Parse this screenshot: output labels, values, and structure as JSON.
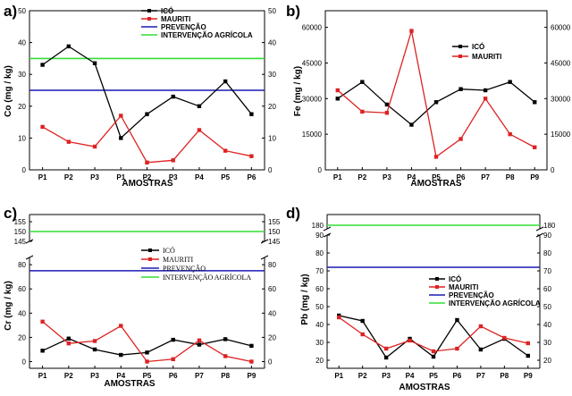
{
  "figure": {
    "colors": {
      "ico": "#000000",
      "mauriti": "#dd2222",
      "prevencao": "#1a1ab4",
      "intervencao": "#33dd33"
    }
  },
  "chart_data": [
    {
      "panel": "a)",
      "type": "line",
      "ylabel": "Co (mg / kg)",
      "xlabel": "AMOSTRAS",
      "categories": [
        "P1",
        "P2",
        "P3",
        "P1",
        "P2",
        "P3",
        "P4",
        "P5",
        "P6"
      ],
      "ylim": [
        0,
        50
      ],
      "yticks": [
        0,
        10,
        20,
        30,
        40,
        50
      ],
      "series": [
        {
          "name": "ICÓ",
          "values": [
            33,
            38.8,
            33.5,
            10,
            17.5,
            23,
            20,
            27.8,
            17.5
          ]
        },
        {
          "name": "MAURITI",
          "values": [
            13.5,
            8.8,
            7.3,
            17,
            2.3,
            3,
            12.5,
            6,
            4.3
          ]
        }
      ],
      "reference_lines": [
        {
          "name": "PREVENÇÃO",
          "value": 25
        },
        {
          "name": "INTERVENÇÃO AGRÍCOLA",
          "value": 35
        }
      ],
      "legend": "top-right"
    },
    {
      "panel": "b)",
      "type": "line",
      "ylabel": "Fe (mg / kg)",
      "xlabel": "AMOSTRAS",
      "categories": [
        "P1",
        "P2",
        "P3",
        "P4",
        "P5",
        "P6",
        "P7",
        "P8",
        "P9"
      ],
      "ylim": [
        0,
        67000
      ],
      "yticks": [
        0,
        15000,
        30000,
        45000,
        60000
      ],
      "series": [
        {
          "name": "ICÓ",
          "values": [
            30000,
            37000,
            27500,
            19000,
            28500,
            34000,
            33500,
            37000,
            28500
          ]
        },
        {
          "name": "MAURITI",
          "values": [
            33500,
            24500,
            24000,
            58500,
            5500,
            13000,
            30000,
            15000,
            9500
          ]
        }
      ],
      "legend": "top-right"
    },
    {
      "panel": "c)",
      "type": "line",
      "ylabel": "Cr (mg / kg)",
      "xlabel": "AMOSTRAS",
      "categories": [
        "P1",
        "P2",
        "P3",
        "P4",
        "P5",
        "P6",
        "P7",
        "P8",
        "P9"
      ],
      "ylim": [
        -4,
        155
      ],
      "axis_break": [
        85,
        145
      ],
      "yticks_lower": [
        0,
        20,
        40,
        60,
        80
      ],
      "yticks_upper": [
        145,
        150,
        155
      ],
      "series": [
        {
          "name": "ICÓ",
          "values": [
            9,
            19,
            10,
            5.5,
            7.5,
            18,
            14,
            18.5,
            13
          ]
        },
        {
          "name": "MAURITI",
          "values": [
            33,
            15,
            17,
            29.5,
            0,
            2,
            17.5,
            4.5,
            0
          ]
        }
      ],
      "reference_lines": [
        {
          "name": "PREVENÇÃO",
          "value": 75
        },
        {
          "name": "INTERVENÇÃO AGRÍCOLA",
          "value": 150
        }
      ],
      "legend": "center-right"
    },
    {
      "panel": "d)",
      "type": "line",
      "ylabel": "Pb (mg / kg)",
      "xlabel": "AMOSTRAS",
      "categories": [
        "P1",
        "P2",
        "P3",
        "P4",
        "P5",
        "P6",
        "P7",
        "P8",
        "P9"
      ],
      "ylim": [
        15,
        180
      ],
      "axis_break": [
        90,
        180
      ],
      "yticks_lower": [
        20,
        30,
        40,
        50,
        60,
        70,
        80,
        90
      ],
      "yticks_upper": [
        180
      ],
      "series": [
        {
          "name": "ICÓ",
          "values": [
            45,
            42,
            21.5,
            32,
            22,
            42.5,
            26,
            32,
            22.5
          ]
        },
        {
          "name": "MAURITI",
          "values": [
            44,
            34.5,
            26.5,
            31,
            25,
            26.5,
            39,
            32.5,
            29.5
          ]
        }
      ],
      "reference_lines": [
        {
          "name": "PREVENÇÃO",
          "value": 72
        },
        {
          "name": "INTERVENÇÃO AGRÍCOLA",
          "value": 180
        }
      ],
      "legend": "center-right"
    }
  ]
}
